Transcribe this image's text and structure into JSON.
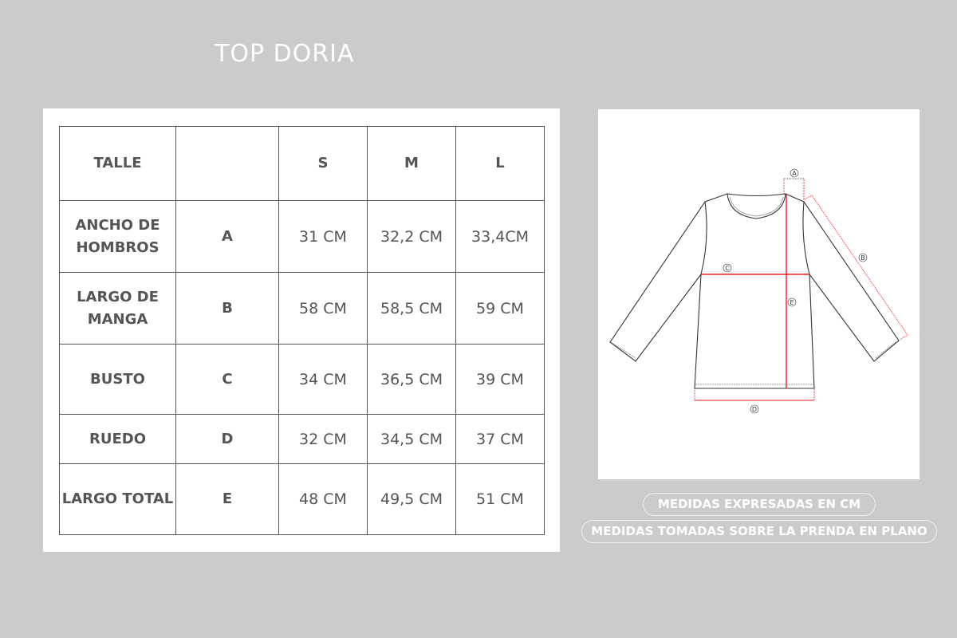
{
  "title": "TOP DORIA",
  "table": {
    "header": [
      "TALLE",
      "",
      "S",
      "M",
      "L"
    ],
    "rows": [
      {
        "name": "ANCHO DE HOMBROS",
        "code": "A",
        "values": [
          "31 CM",
          "32,2 CM",
          "33,4CM"
        ]
      },
      {
        "name": "LARGO DE MANGA",
        "code": "B",
        "values": [
          "58 CM",
          "58,5 CM",
          "59 CM"
        ]
      },
      {
        "name": "BUSTO",
        "code": "C",
        "values": [
          "34 CM",
          "36,5 CM",
          "39 CM"
        ]
      },
      {
        "name": "RUEDO",
        "code": "D",
        "values": [
          "32 CM",
          "34,5 CM",
          "37 CM"
        ]
      },
      {
        "name": "LARGO TOTAL",
        "code": "E",
        "values": [
          "48 CM",
          "49,5 CM",
          "51 CM"
        ]
      }
    ]
  },
  "diagram": {
    "labels": [
      "A",
      "B",
      "C",
      "D",
      "E"
    ],
    "measure_color": "#e8202a"
  },
  "notes": [
    "MEDIDAS EXPRESADAS EN CM",
    "MEDIDAS TOMADAS SOBRE LA PRENDA EN PLANO"
  ]
}
